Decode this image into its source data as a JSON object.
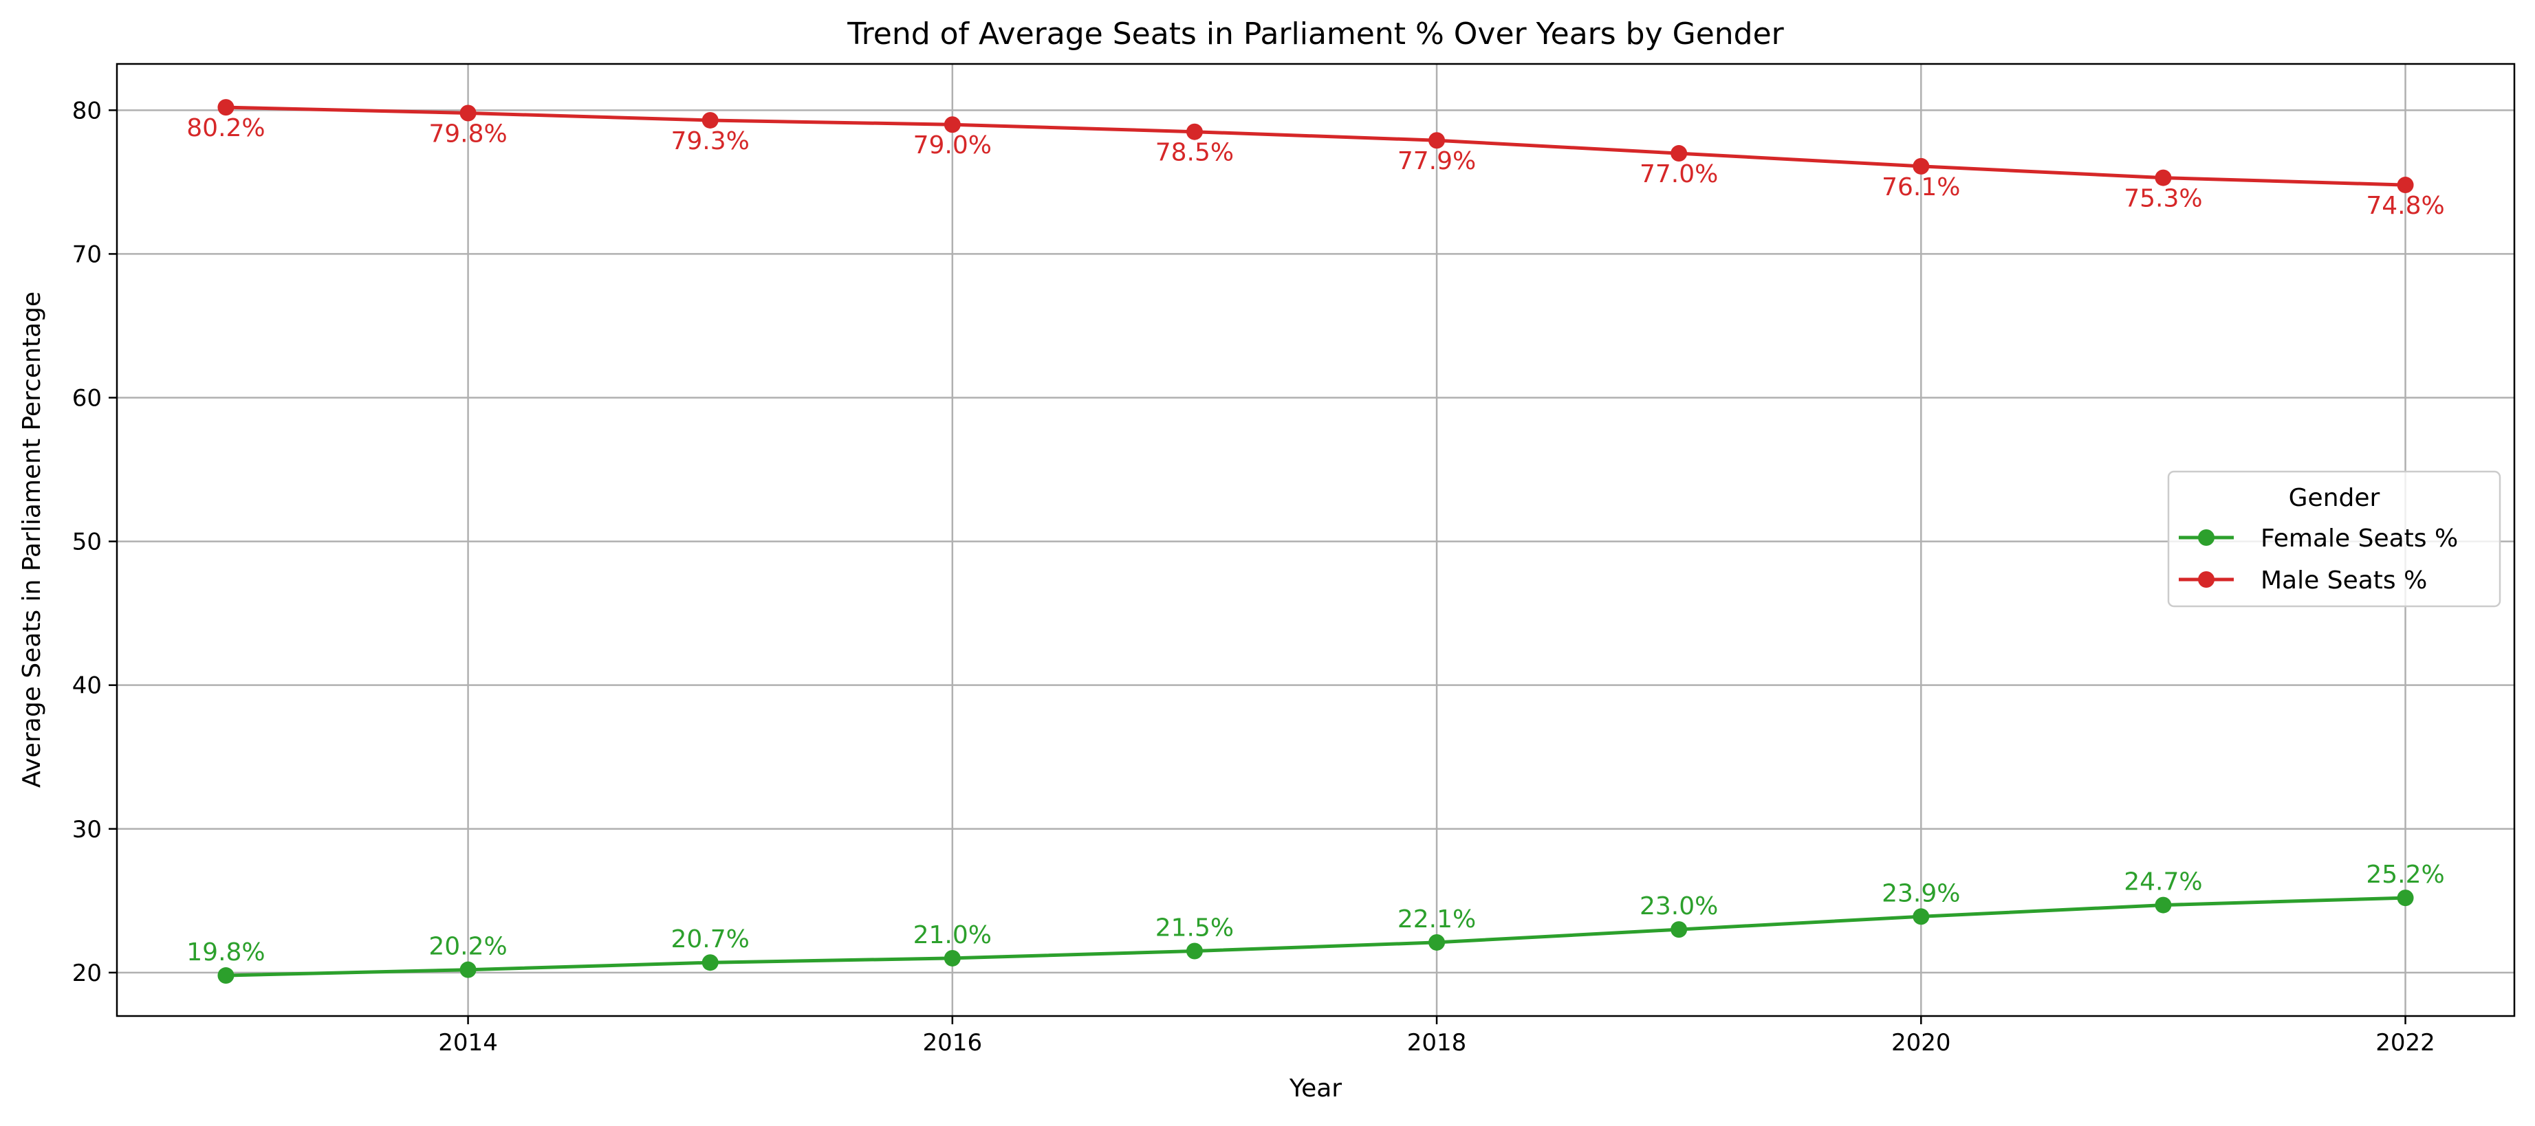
{
  "chart_data": {
    "type": "line",
    "title": "Trend of Average Seats in Parliament % Over Years by Gender",
    "xlabel": "Year",
    "ylabel": "Average Seats in Parliament Percentage",
    "x": [
      2013,
      2014,
      2015,
      2016,
      2017,
      2018,
      2019,
      2020,
      2021,
      2022
    ],
    "xlim": [
      2012.55,
      2022.45
    ],
    "ylim": [
      16.98,
      83.22
    ],
    "xticks": [
      2014,
      2016,
      2018,
      2020,
      2022
    ],
    "yticks": [
      20,
      30,
      40,
      50,
      60,
      70,
      80
    ],
    "grid": true,
    "legend": {
      "title": "Gender",
      "placement": "center-right"
    },
    "series": [
      {
        "name": "Female Seats %",
        "color": "#2ca02c",
        "marker": "circle",
        "values": [
          19.8,
          20.2,
          20.7,
          21.0,
          21.5,
          22.1,
          23.0,
          23.9,
          24.7,
          25.2
        ],
        "labels": [
          "19.8%",
          "20.2%",
          "20.7%",
          "21.0%",
          "21.5%",
          "22.1%",
          "23.0%",
          "23.9%",
          "24.7%",
          "25.2%"
        ],
        "label_position": "above"
      },
      {
        "name": "Male Seats %",
        "color": "#d62728",
        "marker": "circle",
        "values": [
          80.2,
          79.8,
          79.3,
          79.0,
          78.5,
          77.9,
          77.0,
          76.1,
          75.3,
          74.8
        ],
        "labels": [
          "80.2%",
          "79.8%",
          "79.3%",
          "79.0%",
          "78.5%",
          "77.9%",
          "77.0%",
          "76.1%",
          "75.3%",
          "74.8%"
        ],
        "label_position": "below"
      }
    ]
  }
}
